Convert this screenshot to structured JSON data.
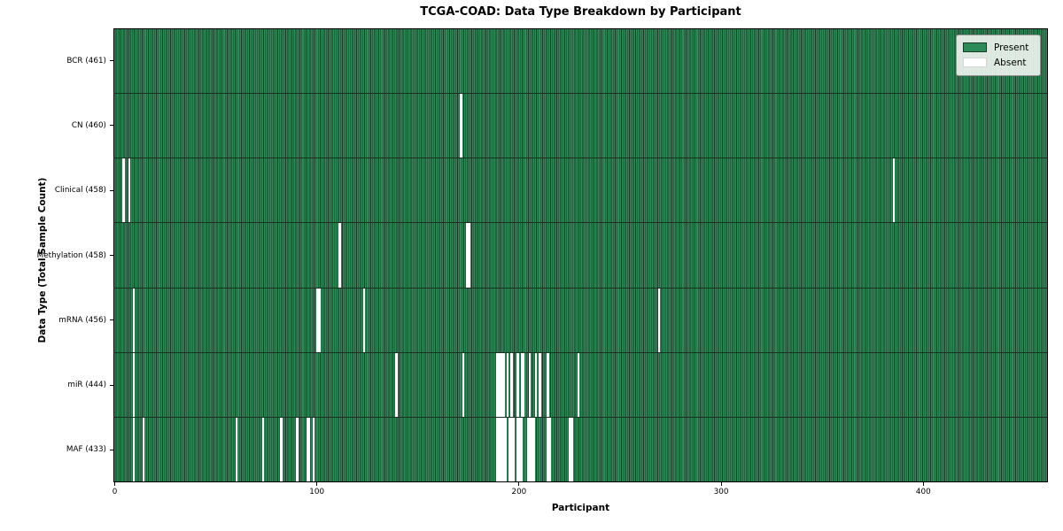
{
  "chart_data": {
    "type": "heatmap",
    "title": "TCGA-COAD: Data Type Breakdown by Participant",
    "xlabel": "Participant",
    "ylabel": "Data Type (Total Sample Count)",
    "n_participants": 461,
    "x_ticks": [
      0,
      100,
      200,
      300,
      400
    ],
    "legend_position": "upper right",
    "grid": false,
    "legend": [
      {
        "label": "Present",
        "color": "#2e8b57"
      },
      {
        "label": "Absent",
        "color": "#ffffff"
      }
    ],
    "colors": {
      "present_fill": "#2e8b57",
      "present_edge": "#163a27",
      "absent_fill": "#ffffff",
      "row_divider": "#17301f"
    },
    "rows": [
      {
        "label": "BCR (461)",
        "data_type": "BCR",
        "total": 461,
        "absent_participants": []
      },
      {
        "label": "CN (460)",
        "data_type": "CN",
        "total": 460,
        "absent_participants": [
          171
        ]
      },
      {
        "label": "Clinical (458)",
        "data_type": "Clinical",
        "total": 458,
        "absent_participants": [
          4,
          7,
          385
        ]
      },
      {
        "label": "Methylation (458)",
        "data_type": "Methylation",
        "total": 458,
        "absent_participants": [
          111,
          174,
          175
        ]
      },
      {
        "label": "mRNA (456)",
        "data_type": "mRNA",
        "total": 456,
        "absent_participants": [
          9,
          100,
          101,
          123,
          269
        ]
      },
      {
        "label": "miR (444)",
        "data_type": "miR",
        "total": 444,
        "absent_participants": [
          9,
          139,
          172,
          189,
          190,
          191,
          192,
          194,
          196,
          199,
          201,
          202,
          205,
          208,
          210,
          214,
          229
        ]
      },
      {
        "label": "MAF (433)",
        "data_type": "MAF",
        "total": 433,
        "absent_participants": [
          9,
          14,
          60,
          73,
          82,
          90,
          95,
          96,
          98,
          189,
          190,
          191,
          192,
          193,
          195,
          196,
          197,
          199,
          200,
          201,
          204,
          205,
          206,
          207,
          214,
          215,
          225,
          226
        ]
      }
    ]
  }
}
